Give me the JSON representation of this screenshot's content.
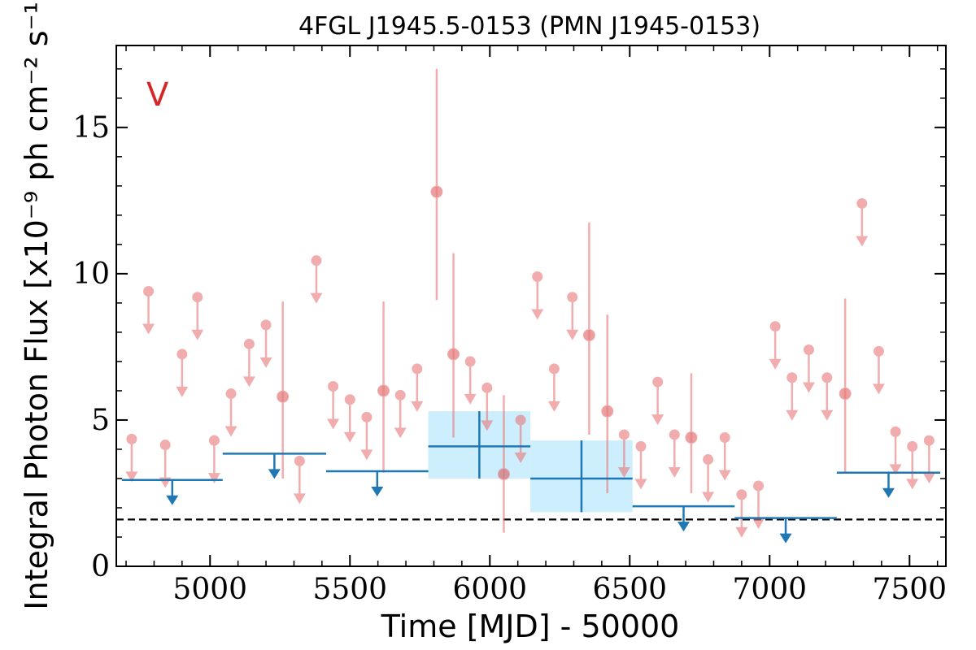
{
  "chart_data": {
    "type": "scatter",
    "title": "4FGL J1945.5-0153 (PMN J1945-0153)",
    "xlabel": "Time [MJD] - 50000",
    "ylabel": "Integral Photon Flux [x10$^{-9}$ ph cm$^{-2}$ s$^{-1}$]",
    "ylabel_display": "Integral Photon Flux [x10⁻⁹ ph cm⁻² s⁻¹]",
    "band_label": "V",
    "xlim": [
      4665,
      7630
    ],
    "ylim": [
      0,
      17.8
    ],
    "x_ticks": [
      5000,
      5500,
      6000,
      6500,
      7000,
      7500
    ],
    "y_ticks": [
      0,
      5,
      10,
      15
    ],
    "colors": {
      "short_bin": "#e8777a",
      "long_bin": "#1f77b4",
      "band_fill": "#cdeefc",
      "band_label": "#d62728",
      "baseline": "#000000"
    },
    "baseline_flux": 1.6,
    "short_bins": {
      "detections": [
        {
          "x": 5260,
          "y": 5.8,
          "ylo": 3.0,
          "yhi": 9.05
        },
        {
          "x": 5620,
          "y": 6.0,
          "ylo": 3.2,
          "yhi": 9.05
        },
        {
          "x": 5810,
          "y": 12.8,
          "ylo": 9.1,
          "yhi": 17.0
        },
        {
          "x": 5870,
          "y": 7.25,
          "ylo": 4.4,
          "yhi": 10.7
        },
        {
          "x": 6050,
          "y": 3.15,
          "ylo": 1.15,
          "yhi": 5.85
        },
        {
          "x": 6355,
          "y": 7.9,
          "ylo": 4.5,
          "yhi": 11.75
        },
        {
          "x": 6420,
          "y": 5.3,
          "ylo": 2.5,
          "yhi": 8.6
        },
        {
          "x": 6720,
          "y": 4.4,
          "ylo": 2.5,
          "yhi": 6.6
        },
        {
          "x": 7270,
          "y": 5.9,
          "ylo": 3.2,
          "yhi": 9.15
        }
      ],
      "upper_limits": [
        {
          "x": 4720,
          "y": 4.35
        },
        {
          "x": 4780,
          "y": 9.4
        },
        {
          "x": 4840,
          "y": 4.15
        },
        {
          "x": 4900,
          "y": 7.25
        },
        {
          "x": 4955,
          "y": 9.2
        },
        {
          "x": 5015,
          "y": 4.3
        },
        {
          "x": 5075,
          "y": 5.9
        },
        {
          "x": 5140,
          "y": 7.6
        },
        {
          "x": 5200,
          "y": 8.25
        },
        {
          "x": 5320,
          "y": 3.6
        },
        {
          "x": 5380,
          "y": 10.45
        },
        {
          "x": 5440,
          "y": 6.15
        },
        {
          "x": 5500,
          "y": 5.7
        },
        {
          "x": 5560,
          "y": 5.1
        },
        {
          "x": 5680,
          "y": 5.85
        },
        {
          "x": 5740,
          "y": 6.75
        },
        {
          "x": 5930,
          "y": 7.0
        },
        {
          "x": 5990,
          "y": 6.1
        },
        {
          "x": 6110,
          "y": 5.0
        },
        {
          "x": 6170,
          "y": 9.9
        },
        {
          "x": 6230,
          "y": 6.75
        },
        {
          "x": 6295,
          "y": 9.2
        },
        {
          "x": 6480,
          "y": 4.5
        },
        {
          "x": 6540,
          "y": 4.1
        },
        {
          "x": 6600,
          "y": 6.3
        },
        {
          "x": 6660,
          "y": 4.5
        },
        {
          "x": 6780,
          "y": 3.65
        },
        {
          "x": 6840,
          "y": 4.4
        },
        {
          "x": 6900,
          "y": 2.45
        },
        {
          "x": 6960,
          "y": 2.75
        },
        {
          "x": 7020,
          "y": 8.2
        },
        {
          "x": 7080,
          "y": 6.45
        },
        {
          "x": 7140,
          "y": 7.4
        },
        {
          "x": 7205,
          "y": 6.45
        },
        {
          "x": 7330,
          "y": 12.4
        },
        {
          "x": 7390,
          "y": 7.35
        },
        {
          "x": 7450,
          "y": 4.6
        },
        {
          "x": 7510,
          "y": 4.1
        },
        {
          "x": 7570,
          "y": 4.3
        }
      ]
    },
    "long_bins": {
      "detections": [
        {
          "x0": 5780,
          "x1": 6145,
          "y": 4.1,
          "ylo": 3.0,
          "yhi": 5.3
        },
        {
          "x0": 6145,
          "x1": 6510,
          "y": 3.0,
          "ylo": 1.85,
          "yhi": 4.3
        }
      ],
      "upper_limits": [
        {
          "x0": 4685,
          "x1": 5045,
          "y": 2.95
        },
        {
          "x0": 5045,
          "x1": 5415,
          "y": 3.85
        },
        {
          "x0": 5415,
          "x1": 5780,
          "y": 3.25
        },
        {
          "x0": 6510,
          "x1": 6875,
          "y": 2.05
        },
        {
          "x0": 6875,
          "x1": 7240,
          "y": 1.65
        },
        {
          "x0": 7240,
          "x1": 7610,
          "y": 3.2
        }
      ]
    }
  }
}
